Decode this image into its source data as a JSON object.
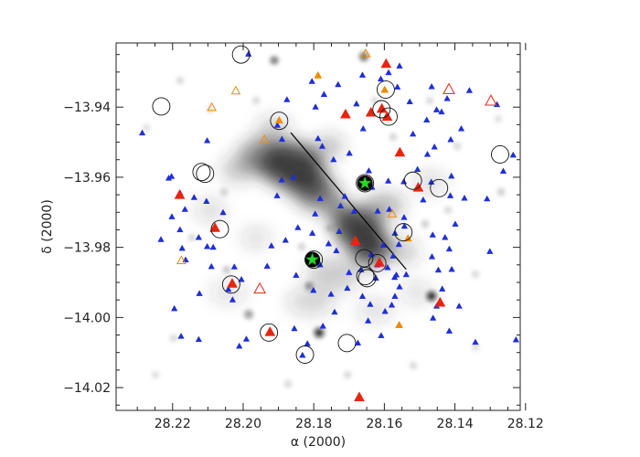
{
  "chart_data": {
    "type": "scatter",
    "title": "",
    "xlabel": "α   (2000)",
    "ylabel": "δ  (2000)",
    "x_reversed": true,
    "xlim": [
      28.236,
      28.1215
    ],
    "ylim": [
      -14.0265,
      -13.9217
    ],
    "x_ticks": [
      28.22,
      28.2,
      28.18,
      28.16,
      28.14,
      28.12
    ],
    "x_tick_labels": [
      "28.22",
      "28.20",
      "28.18",
      "28.16",
      "28.14",
      "28.12"
    ],
    "y_ticks": [
      -13.94,
      -13.96,
      -13.98,
      -14.0,
      -14.02
    ],
    "y_tick_labels": [
      "−13.94",
      "−13.96",
      "−13.98",
      "−14.00",
      "−14.02"
    ],
    "grid": false,
    "background": "greyscale emission map",
    "line": {
      "start": [
        28.1865,
        -13.9473
      ],
      "end": [
        28.1538,
        -13.9863
      ]
    },
    "markers": {
      "blue_filled_triangles": {
        "color": "#1f2fd8",
        "points": [
          [
            28.2286,
            -13.9474
          ],
          [
            28.2102,
            -13.9496
          ],
          [
            28.2211,
            -13.9603
          ],
          [
            28.2203,
            -13.9598
          ],
          [
            28.2179,
            -13.9645
          ],
          [
            28.2202,
            -13.9713
          ],
          [
            28.2179,
            -13.975
          ],
          [
            28.2139,
            -13.9658
          ],
          [
            28.2165,
            -13.9692
          ],
          [
            28.2104,
            -13.9669
          ],
          [
            28.2057,
            -13.9701
          ],
          [
            28.2126,
            -13.9772
          ],
          [
            28.2102,
            -13.9798
          ],
          [
            28.2085,
            -13.98
          ],
          [
            28.2233,
            -13.9778
          ],
          [
            28.2173,
            -13.9803
          ],
          [
            28.2163,
            -13.9836
          ],
          [
            28.209,
            -13.9855
          ],
          [
            28.2025,
            -13.9856
          ],
          [
            28.2005,
            -13.9892
          ],
          [
            28.2042,
            -13.992
          ],
          [
            28.2124,
            -13.9932
          ],
          [
            28.203,
            -13.995
          ],
          [
            28.2195,
            -13.9975
          ],
          [
            28.2176,
            -14.0054
          ],
          [
            28.2126,
            -14.0063
          ],
          [
            28.1991,
            -14.0062
          ],
          [
            28.2011,
            -14.0082
          ],
          [
            28.1985,
            -13.9249
          ],
          [
            28.1876,
            -13.9379
          ],
          [
            28.1805,
            -13.9327
          ],
          [
            28.1771,
            -13.9364
          ],
          [
            28.1795,
            -13.94
          ],
          [
            28.1903,
            -13.9452
          ],
          [
            28.189,
            -13.9492
          ],
          [
            28.1788,
            -13.949
          ],
          [
            28.1776,
            -13.9512
          ],
          [
            28.1731,
            -13.9336
          ],
          [
            28.1679,
            -13.9391
          ],
          [
            28.1708,
            -13.942
          ],
          [
            28.166,
            -13.9462
          ],
          [
            28.1699,
            -13.9532
          ],
          [
            28.1744,
            -13.955
          ],
          [
            28.1858,
            -13.96
          ],
          [
            28.1891,
            -13.9608
          ],
          [
            28.1904,
            -13.9653
          ],
          [
            28.1782,
            -13.9661
          ],
          [
            28.1796,
            -13.9705
          ],
          [
            28.1712,
            -13.9655
          ],
          [
            28.1724,
            -13.9682
          ],
          [
            28.1686,
            -13.9698
          ],
          [
            28.1644,
            -13.9582
          ],
          [
            28.1635,
            -13.9629
          ],
          [
            28.1589,
            -13.9611
          ],
          [
            28.1619,
            -13.9697
          ],
          [
            28.1586,
            -13.9692
          ],
          [
            28.1544,
            -13.9715
          ],
          [
            28.1543,
            -13.974
          ],
          [
            28.157,
            -13.976
          ],
          [
            28.1545,
            -13.9613
          ],
          [
            28.1506,
            -13.9578
          ],
          [
            28.1478,
            -13.9535
          ],
          [
            28.1519,
            -13.9477
          ],
          [
            28.148,
            -13.9437
          ],
          [
            28.1528,
            -13.9385
          ],
          [
            28.1563,
            -13.9343
          ],
          [
            28.161,
            -13.932
          ],
          [
            28.1662,
            -13.9309
          ],
          [
            28.1588,
            -13.9302
          ],
          [
            28.1557,
            -13.9283
          ],
          [
            28.1466,
            -13.9342
          ],
          [
            28.1438,
            -13.9414
          ],
          [
            28.1412,
            -13.9493
          ],
          [
            28.1458,
            -13.9514
          ],
          [
            28.141,
            -13.9597
          ],
          [
            28.1467,
            -13.9614
          ],
          [
            28.149,
            -13.9665
          ],
          [
            28.1413,
            -13.9653
          ],
          [
            28.1373,
            -13.966
          ],
          [
            28.1309,
            -13.9662
          ],
          [
            28.1263,
            -13.9583
          ],
          [
            28.1235,
            -13.9537
          ],
          [
            28.1382,
            -13.9462
          ],
          [
            28.1452,
            -13.9408
          ],
          [
            28.1422,
            -13.9376
          ],
          [
            28.1359,
            -13.9353
          ],
          [
            28.1281,
            -13.9393
          ],
          [
            28.1399,
            -13.9734
          ],
          [
            28.1428,
            -13.9772
          ],
          [
            28.1463,
            -13.9765
          ],
          [
            28.1416,
            -13.9805
          ],
          [
            28.1465,
            -13.9827
          ],
          [
            28.1447,
            -13.9865
          ],
          [
            28.1409,
            -13.9863
          ],
          [
            28.1436,
            -13.9919
          ],
          [
            28.1388,
            -13.9968
          ],
          [
            28.1452,
            -13.9968
          ],
          [
            28.1462,
            -14.0002
          ],
          [
            28.1416,
            -14.0039
          ],
          [
            28.1342,
            -14.0071
          ],
          [
            28.1227,
            -14.0064
          ],
          [
            28.1301,
            -13.9812
          ],
          [
            28.1591,
            -13.9858
          ],
          [
            28.1538,
            -13.9878
          ],
          [
            28.1557,
            -13.9913
          ],
          [
            28.157,
            -13.994
          ],
          [
            28.1579,
            -13.9965
          ],
          [
            28.1575,
            -13.9825
          ],
          [
            28.1559,
            -13.9792
          ],
          [
            28.1603,
            -13.9794
          ],
          [
            28.1637,
            -13.982
          ],
          [
            28.162,
            -13.985
          ],
          [
            28.1624,
            -13.9888
          ],
          [
            28.1666,
            -13.9864
          ],
          [
            28.17,
            -13.9872
          ],
          [
            28.1736,
            -13.981
          ],
          [
            28.1728,
            -13.9755
          ],
          [
            28.1758,
            -13.979
          ],
          [
            28.1782,
            -13.985
          ],
          [
            28.1804,
            -13.976
          ],
          [
            28.1845,
            -13.9744
          ],
          [
            28.188,
            -13.978
          ],
          [
            28.192,
            -13.9796
          ],
          [
            28.1932,
            -13.9854
          ],
          [
            28.185,
            -13.988
          ],
          [
            28.1801,
            -13.9923
          ],
          [
            28.1751,
            -13.9934
          ],
          [
            28.1705,
            -13.9917
          ],
          [
            28.1662,
            -13.994
          ],
          [
            28.164,
            -13.9963
          ],
          [
            28.1741,
            -13.9985
          ],
          [
            28.1774,
            -14.0025
          ],
          [
            28.1855,
            -14.0032
          ],
          [
            28.1818,
            -14.0075
          ],
          [
            28.1832,
            -14.0108
          ],
          [
            28.1675,
            -14.0073
          ],
          [
            28.1609,
            -14.0052
          ],
          [
            28.1598,
            -13.9983
          ],
          [
            28.1646,
            -14.001
          ],
          [
            28.1571,
            -13.9886
          ],
          [
            28.1566,
            -13.9879
          ]
        ]
      },
      "red_filled_triangles": {
        "color": "#e8240e",
        "points": [
          [
            28.1595,
            -13.9277
          ],
          [
            28.1638,
            -13.9416
          ],
          [
            28.1607,
            -13.9405
          ],
          [
            28.1592,
            -13.9428
          ],
          [
            28.1556,
            -13.953
          ],
          [
            28.1504,
            -13.963
          ],
          [
            28.1442,
            -13.9958
          ],
          [
            28.1682,
            -13.9782
          ],
          [
            28.1614,
            -13.9844
          ],
          [
            28.171,
            -13.9421
          ],
          [
            28.218,
            -13.9651
          ],
          [
            28.208,
            -13.9745
          ],
          [
            28.2031,
            -13.9904
          ],
          [
            28.1924,
            -14.0042
          ],
          [
            28.1671,
            -14.0228
          ]
        ]
      },
      "orange_filled_triangles": {
        "color": "#f08a00",
        "points": [
          [
            28.1788,
            -13.931
          ],
          [
            28.1599,
            -13.9351
          ],
          [
            28.1898,
            -13.9438
          ],
          [
            28.1558,
            -14.0022
          ],
          [
            28.1533,
            -13.9775
          ]
        ]
      },
      "red_open_triangles": {
        "color": "#e8240e",
        "points": [
          [
            28.1417,
            -13.935
          ],
          [
            28.1298,
            -13.9383
          ],
          [
            28.1953,
            -13.9919
          ]
        ]
      },
      "orange_open_triangles": {
        "color": "#f08a00",
        "points": [
          [
            28.1653,
            -13.9248
          ],
          [
            28.2021,
            -13.9354
          ],
          [
            28.2089,
            -13.9401
          ],
          [
            28.194,
            -13.9493
          ],
          [
            28.1578,
            -13.9705
          ],
          [
            28.2175,
            -13.9838
          ]
        ]
      },
      "circles": {
        "color": "#111111",
        "points": [
          [
            28.2006,
            -13.925
          ],
          [
            28.2232,
            -13.9398
          ],
          [
            28.1898,
            -13.9439
          ],
          [
            28.2118,
            -13.9585
          ],
          [
            28.2108,
            -13.959
          ],
          [
            28.1596,
            -13.935
          ],
          [
            28.1608,
            -13.9406
          ],
          [
            28.1588,
            -13.9427
          ],
          [
            28.1655,
            -13.9617
          ],
          [
            28.1519,
            -13.961
          ],
          [
            28.1445,
            -13.9631
          ],
          [
            28.1272,
            -13.9535
          ],
          [
            28.1546,
            -13.9757
          ],
          [
            28.2066,
            -13.9748
          ],
          [
            28.18,
            -13.9835
          ],
          [
            28.1657,
            -13.9831
          ],
          [
            28.162,
            -13.9845
          ],
          [
            28.1654,
            -13.9882
          ],
          [
            28.1649,
            -13.9888
          ],
          [
            28.2034,
            -13.9906
          ],
          [
            28.1927,
            -14.0043
          ],
          [
            28.1706,
            -14.0073
          ],
          [
            28.1825,
            -14.0106
          ]
        ]
      },
      "green_stars": {
        "color": "#2bd62b",
        "points": [
          [
            28.1655,
            -13.9617
          ],
          [
            28.1804,
            -13.9835
          ]
        ]
      }
    }
  }
}
